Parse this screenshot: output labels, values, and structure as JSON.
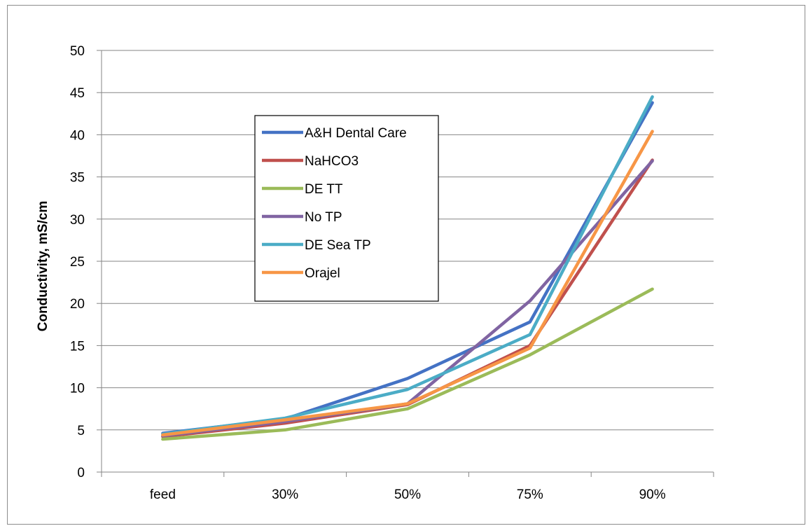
{
  "chart_data": {
    "type": "line",
    "title": "",
    "xlabel": "",
    "ylabel": "Conductivity, mS/cm",
    "categories": [
      "feed",
      "30%",
      "50%",
      "75%",
      "90%"
    ],
    "ylim": [
      0,
      50
    ],
    "yticks": [
      0,
      5,
      10,
      15,
      20,
      25,
      30,
      35,
      40,
      45,
      50
    ],
    "grid": true,
    "legend_position": "inside-center-left",
    "series": [
      {
        "name": "A&H Dental Care",
        "color": "#4472C4",
        "values": [
          4.6,
          6.3,
          11.1,
          17.8,
          43.8
        ]
      },
      {
        "name": "NaHCO3",
        "color": "#C0504D",
        "values": [
          4.2,
          5.8,
          8.0,
          15.0,
          37.0
        ]
      },
      {
        "name": "DE TT",
        "color": "#9BBB59",
        "values": [
          3.9,
          5.0,
          7.5,
          13.9,
          21.7
        ]
      },
      {
        "name": "No TP",
        "color": "#8064A2",
        "values": [
          4.3,
          6.0,
          8.1,
          20.3,
          36.9
        ]
      },
      {
        "name": "DE Sea TP",
        "color": "#4BACC6",
        "values": [
          4.5,
          6.4,
          9.8,
          16.3,
          44.5
        ]
      },
      {
        "name": "Orajel",
        "color": "#F79646",
        "values": [
          4.4,
          6.2,
          8.1,
          14.7,
          40.4
        ]
      }
    ]
  }
}
